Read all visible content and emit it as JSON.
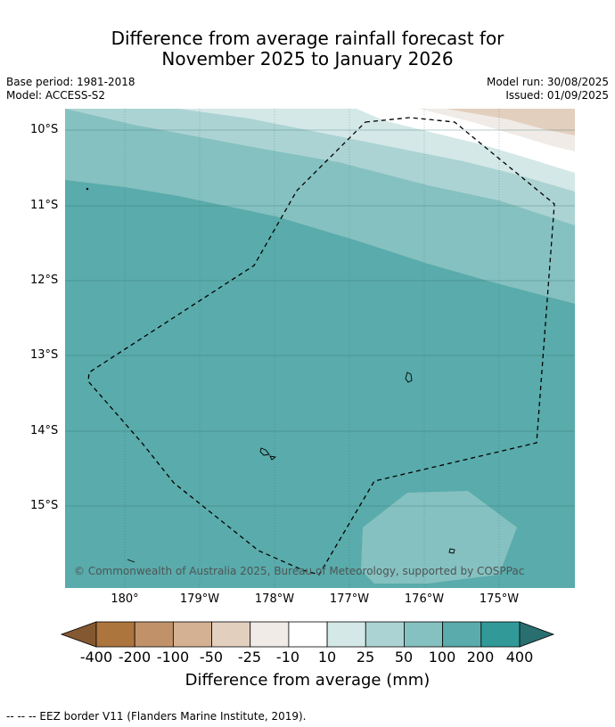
{
  "title": {
    "line1": "Difference from average rainfall forecast for",
    "line2": "November 2025 to January 2026"
  },
  "meta_left": {
    "base_period": "Base period: 1981-2018",
    "model": "Model: ACCESS-S2"
  },
  "meta_right": {
    "model_run": "Model run: 30/08/2025",
    "issued": "Issued: 01/09/2025"
  },
  "map": {
    "lat_labels": [
      "10°S",
      "11°S",
      "12°S",
      "13°S",
      "14°S",
      "15°S"
    ],
    "lon_labels": [
      "180°",
      "179°W",
      "178°W",
      "177°W",
      "176°W",
      "175°W"
    ],
    "copyright": "© Commonwealth of Australia 2025, Bureau of Meteorology, supported by COSPPac"
  },
  "colorbar": {
    "ticks": [
      "-400",
      "-200",
      "-100",
      "-50",
      "-25",
      "-10",
      "10",
      "25",
      "50",
      "100",
      "200",
      "400"
    ],
    "colors": [
      "#845830",
      "#ad753e",
      "#c1926a",
      "#d4b192",
      "#e3cfbe",
      "#f0ebe6",
      "#ffffff",
      "#d4e8e7",
      "#acd3d3",
      "#85c1c0",
      "#5aabab",
      "#319a99",
      "#296f6f"
    ],
    "label": "Difference from average (mm)"
  },
  "footer": "-- -- -- EEZ border V11 (Flanders Marine Institute, 2019)."
}
